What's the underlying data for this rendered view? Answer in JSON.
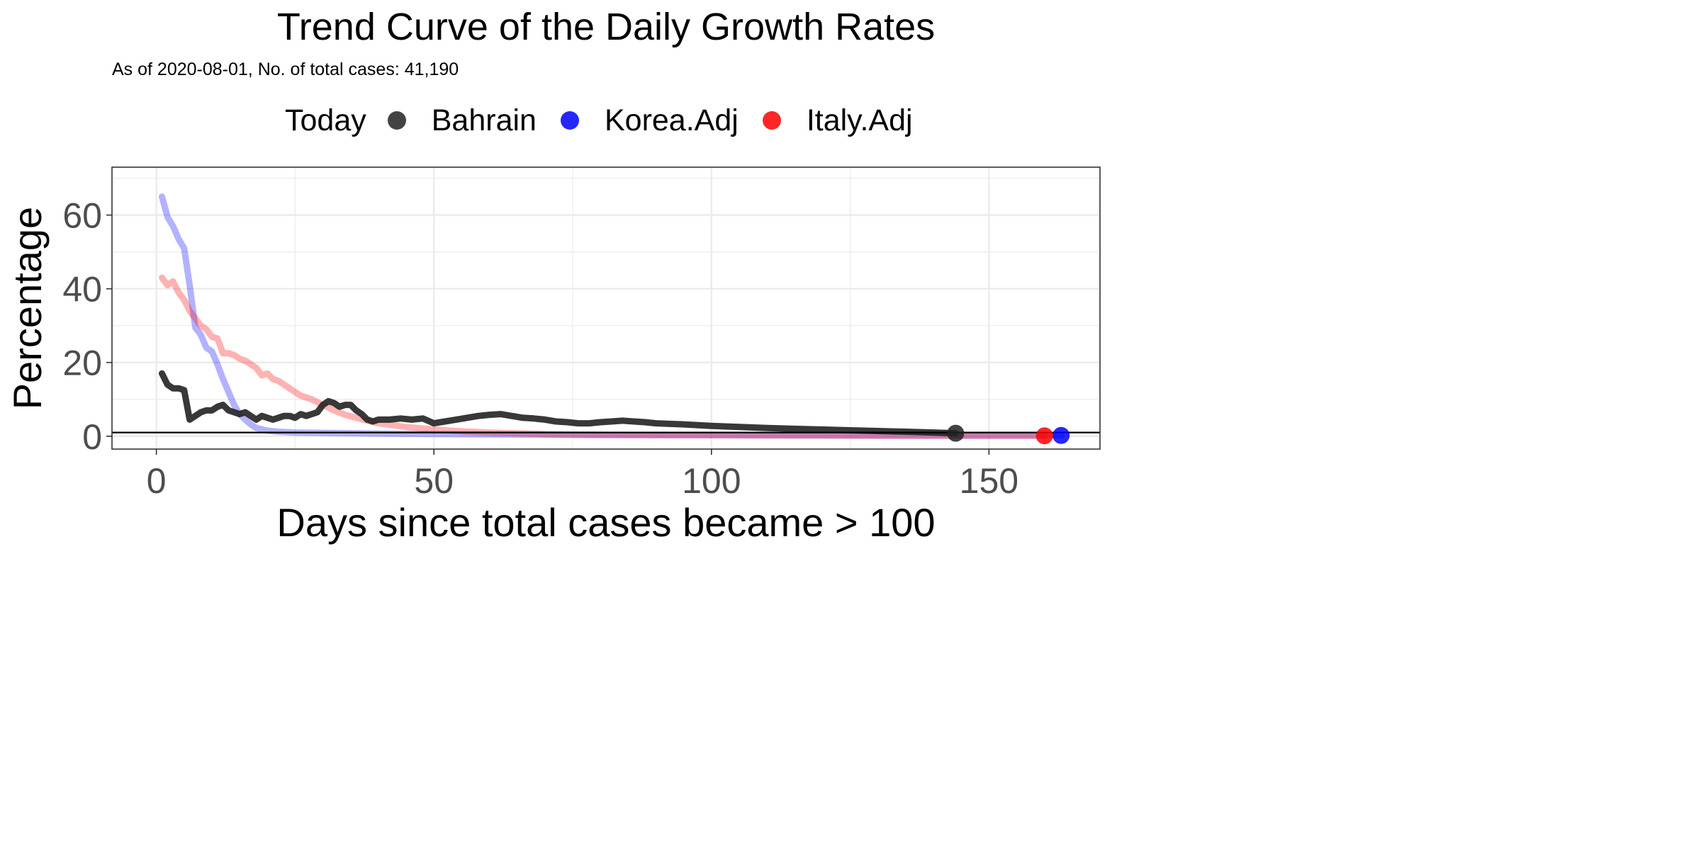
{
  "chart_data": {
    "type": "line",
    "title": "Trend Curve of the Daily Growth Rates",
    "subtitle": "As of 2020-08-01, No. of total cases: 41,190",
    "xlabel": "Days since total cases became > 100",
    "ylabel": "Percentage",
    "xlim": [
      -8,
      170
    ],
    "ylim": [
      -3.5,
      73
    ],
    "x_ticks": [
      0,
      50,
      100,
      150
    ],
    "y_ticks": [
      0,
      20,
      40,
      60
    ],
    "x_tick_labels": [
      "0",
      "50",
      "100",
      "150"
    ],
    "y_tick_labels": [
      "0",
      "20",
      "40",
      "60"
    ],
    "grid": true,
    "hline": 1,
    "legend": {
      "title": "Today",
      "position": "top",
      "entries": [
        {
          "label": "Bahrain",
          "color": "#222222"
        },
        {
          "label": "Korea.Adj",
          "color": "#0000ff"
        },
        {
          "label": "Italy.Adj",
          "color": "#ff0000"
        }
      ]
    },
    "series": [
      {
        "name": "Korea.Adj",
        "color": "#0000ff",
        "opacity": 0.3,
        "today_point": [
          163,
          0.2
        ],
        "x": [
          1,
          2,
          3,
          4,
          5,
          6,
          7,
          8,
          9,
          10,
          11,
          12,
          13,
          14,
          15,
          16,
          17,
          18,
          20,
          22,
          25,
          30,
          40,
          50,
          60,
          70,
          80,
          90,
          100,
          110,
          120,
          130,
          140,
          150,
          160,
          163
        ],
        "y": [
          65,
          59.5,
          57,
          53.5,
          51,
          41,
          29.5,
          27.5,
          24,
          23,
          19.5,
          15.5,
          12,
          8.5,
          6,
          4.5,
          3.2,
          2.2,
          1.5,
          1.2,
          1.0,
          0.9,
          0.7,
          0.6,
          0.5,
          0.4,
          0.3,
          0.3,
          0.3,
          0.25,
          0.25,
          0.2,
          0.2,
          0.2,
          0.2,
          0.2
        ]
      },
      {
        "name": "Italy.Adj",
        "color": "#ff0000",
        "opacity": 0.3,
        "today_point": [
          160,
          0.1
        ],
        "x": [
          1,
          2,
          3,
          4,
          5,
          6,
          7,
          8,
          9,
          10,
          11,
          12,
          13,
          14,
          15,
          16,
          17,
          18,
          19,
          20,
          21,
          22,
          24,
          26,
          28,
          30,
          32,
          34,
          36,
          38,
          40,
          45,
          50,
          55,
          60,
          70,
          80,
          90,
          100,
          110,
          120,
          130,
          140,
          150,
          160
        ],
        "y": [
          43,
          41,
          42,
          39,
          37,
          34,
          32,
          30,
          29,
          27,
          26.5,
          22.5,
          22.5,
          22,
          21,
          20.5,
          19.5,
          18.5,
          16.5,
          17,
          15.5,
          15,
          13,
          11,
          10,
          8.5,
          7,
          5.8,
          5,
          4.2,
          3.5,
          2.5,
          1.8,
          1.3,
          1.0,
          0.6,
          0.4,
          0.3,
          0.25,
          0.2,
          0.15,
          0.12,
          0.1,
          0.1,
          0.1
        ]
      },
      {
        "name": "Bahrain",
        "color": "#222222",
        "opacity": 0.9,
        "today_point": [
          144,
          0.8
        ],
        "x": [
          1,
          2,
          3,
          4,
          5,
          6,
          7,
          8,
          9,
          10,
          11,
          12,
          13,
          14,
          15,
          16,
          17,
          18,
          19,
          20,
          21,
          22,
          23,
          24,
          25,
          26,
          27,
          28,
          29,
          30,
          31,
          32,
          33,
          34,
          35,
          36,
          37,
          38,
          39,
          40,
          42,
          44,
          46,
          48,
          50,
          52,
          54,
          56,
          58,
          60,
          62,
          64,
          66,
          68,
          70,
          72,
          74,
          76,
          78,
          80,
          82,
          84,
          86,
          88,
          90,
          95,
          100,
          105,
          110,
          115,
          120,
          125,
          130,
          135,
          140,
          144
        ],
        "y": [
          17,
          14,
          13,
          13,
          12.5,
          4.5,
          5.5,
          6.5,
          7,
          7,
          8,
          8.5,
          7,
          6.5,
          6,
          6.5,
          5.5,
          4.5,
          5.5,
          5,
          4.5,
          5,
          5.5,
          5.5,
          5,
          6,
          5.5,
          6,
          6.5,
          8.5,
          9.5,
          9,
          8,
          8.5,
          8.5,
          7,
          6,
          4.5,
          4,
          4.5,
          4.5,
          4.8,
          4.5,
          4.8,
          3.5,
          4,
          4.5,
          5,
          5.5,
          5.8,
          6,
          5.5,
          5,
          4.8,
          4.5,
          4,
          3.8,
          3.5,
          3.5,
          3.8,
          4,
          4.2,
          4,
          3.8,
          3.5,
          3.2,
          2.8,
          2.5,
          2.2,
          2,
          1.8,
          1.6,
          1.4,
          1.2,
          1,
          0.8
        ]
      }
    ]
  }
}
